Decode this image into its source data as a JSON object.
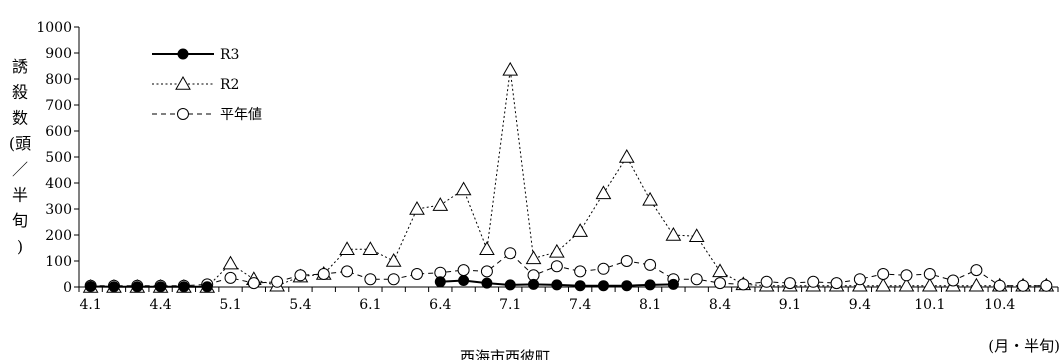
{
  "chart_data": {
    "type": "line",
    "title": "",
    "subtitle": "西海市西彼町",
    "xlabel": "(月・半旬)",
    "ylabel": "誘殺数(頭/半旬)",
    "ylabel_chars": [
      "誘",
      "殺",
      "数",
      "(頭",
      "／",
      "半",
      "旬",
      ")"
    ],
    "ylim": [
      0,
      1000
    ],
    "yticks": [
      0,
      100,
      200,
      300,
      400,
      500,
      600,
      700,
      800,
      900,
      1000
    ],
    "ytick_labels": [
      "0",
      "100",
      "200",
      "300",
      "400",
      "500",
      "600",
      "700",
      "800",
      "900",
      "1000"
    ],
    "x_count": 42,
    "xtick_positions": [
      0,
      3,
      6,
      9,
      12,
      15,
      18,
      21,
      24,
      27,
      30,
      33,
      36,
      39
    ],
    "xtick_labels": [
      "4.1",
      "4.4",
      "5.1",
      "5.4",
      "6.1",
      "6.4",
      "7.1",
      "7.4",
      "8.1",
      "8.4",
      "9.1",
      "9.4",
      "10.1",
      "10.4"
    ],
    "grid": false,
    "legend": "top-left",
    "series": [
      {
        "name": "R3",
        "marker": "filled-circle",
        "line": "solid",
        "color": "#000000",
        "values": [
          2,
          1,
          1,
          1,
          1,
          1,
          null,
          null,
          null,
          null,
          null,
          null,
          null,
          null,
          null,
          20,
          25,
          15,
          8,
          10,
          8,
          5,
          5,
          5,
          8,
          10,
          null,
          null,
          null,
          null,
          null,
          null,
          null,
          null,
          null,
          null,
          null,
          null,
          null,
          null,
          null,
          null
        ]
      },
      {
        "name": "R2",
        "marker": "open-triangle",
        "line": "dotted",
        "color": "#000000",
        "values": [
          0,
          0,
          0,
          0,
          0,
          0,
          90,
          30,
          5,
          40,
          50,
          145,
          145,
          100,
          300,
          315,
          375,
          145,
          835,
          110,
          135,
          215,
          360,
          500,
          335,
          200,
          195,
          60,
          10,
          5,
          5,
          5,
          5,
          5,
          5,
          5,
          5,
          5,
          5,
          5,
          5,
          5
        ]
      },
      {
        "name": "平年値",
        "marker": "open-circle",
        "line": "dashed",
        "color": "#000000",
        "values": [
          5,
          5,
          5,
          5,
          5,
          10,
          35,
          15,
          20,
          45,
          50,
          60,
          30,
          30,
          50,
          55,
          65,
          60,
          130,
          45,
          80,
          60,
          70,
          100,
          85,
          30,
          30,
          15,
          10,
          20,
          15,
          20,
          15,
          30,
          50,
          45,
          50,
          25,
          65,
          5,
          5,
          5
        ]
      }
    ]
  }
}
